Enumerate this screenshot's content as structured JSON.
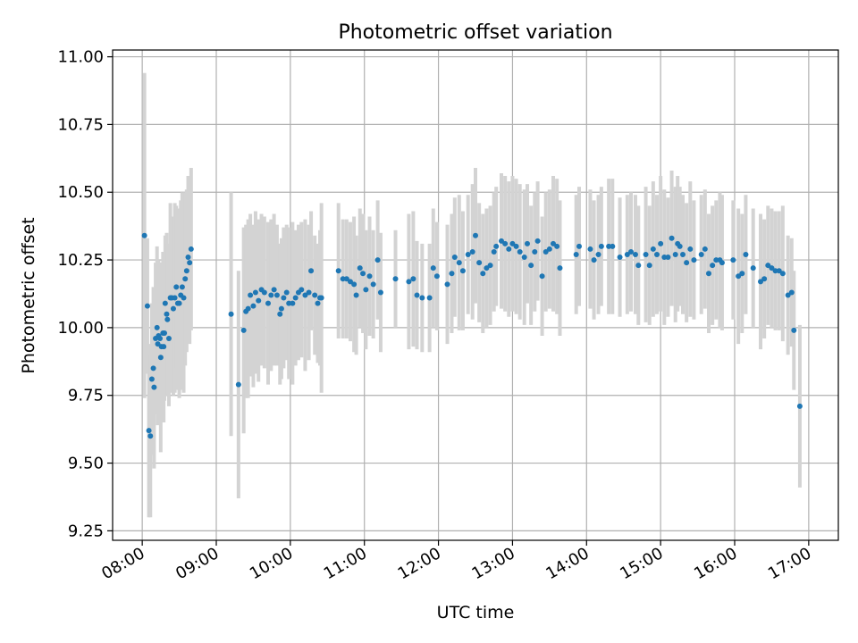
{
  "chart_data": {
    "type": "scatter",
    "title": "Photometric offset variation",
    "xlabel": "UTC time",
    "ylabel": "Photometric offset",
    "x_unit": "hours UTC",
    "xlim": [
      7.6,
      17.4
    ],
    "ylim": [
      9.215,
      11.025
    ],
    "x_ticks": [
      {
        "value": 8,
        "label": "08:00"
      },
      {
        "value": 9,
        "label": "09:00"
      },
      {
        "value": 10,
        "label": "10:00"
      },
      {
        "value": 11,
        "label": "11:00"
      },
      {
        "value": 12,
        "label": "12:00"
      },
      {
        "value": 13,
        "label": "13:00"
      },
      {
        "value": 14,
        "label": "14:00"
      },
      {
        "value": 15,
        "label": "15:00"
      },
      {
        "value": 16,
        "label": "16:00"
      },
      {
        "value": 17,
        "label": "17:00"
      }
    ],
    "y_ticks": [
      {
        "value": 9.25,
        "label": "9.25"
      },
      {
        "value": 9.5,
        "label": "9.50"
      },
      {
        "value": 9.75,
        "label": "9.75"
      },
      {
        "value": 10.0,
        "label": "10.00"
      },
      {
        "value": 10.25,
        "label": "10.25"
      },
      {
        "value": 10.5,
        "label": "10.50"
      },
      {
        "value": 10.75,
        "label": "10.75"
      },
      {
        "value": 11.0,
        "label": "11.00"
      }
    ],
    "grid": true,
    "point_color": "#1f77b4",
    "errorbar_color": "#d3d3d3",
    "points": [
      [
        8.03,
        10.34,
        0.6
      ],
      [
        8.07,
        10.08,
        0.25
      ],
      [
        8.09,
        9.62,
        0.32
      ],
      [
        8.11,
        9.6,
        0.3
      ],
      [
        8.13,
        9.81,
        0.28
      ],
      [
        8.15,
        9.85,
        0.3
      ],
      [
        8.16,
        9.78,
        0.3
      ],
      [
        8.18,
        9.96,
        0.28
      ],
      [
        8.2,
        10.0,
        0.3
      ],
      [
        8.21,
        9.94,
        0.3
      ],
      [
        8.22,
        9.97,
        0.28
      ],
      [
        8.24,
        9.96,
        0.28
      ],
      [
        8.25,
        9.89,
        0.35
      ],
      [
        8.26,
        9.93,
        0.28
      ],
      [
        8.28,
        9.98,
        0.3
      ],
      [
        8.29,
        9.93,
        0.28
      ],
      [
        8.3,
        9.98,
        0.25
      ],
      [
        8.31,
        10.09,
        0.25
      ],
      [
        8.33,
        10.05,
        0.3
      ],
      [
        8.34,
        10.03,
        0.28
      ],
      [
        8.36,
        9.96,
        0.25
      ],
      [
        8.38,
        10.11,
        0.35
      ],
      [
        8.4,
        10.11,
        0.3
      ],
      [
        8.42,
        10.07,
        0.32
      ],
      [
        8.44,
        10.11,
        0.35
      ],
      [
        8.46,
        10.15,
        0.3
      ],
      [
        8.48,
        10.09,
        0.32
      ],
      [
        8.5,
        10.09,
        0.35
      ],
      [
        8.52,
        10.12,
        0.35
      ],
      [
        8.54,
        10.15,
        0.35
      ],
      [
        8.56,
        10.11,
        0.35
      ],
      [
        8.58,
        10.18,
        0.32
      ],
      [
        8.6,
        10.21,
        0.3
      ],
      [
        8.62,
        10.26,
        0.3
      ],
      [
        8.64,
        10.24,
        0.3
      ],
      [
        8.66,
        10.29,
        0.3
      ],
      [
        9.2,
        10.05,
        0.45
      ],
      [
        9.3,
        9.79,
        0.42
      ],
      [
        9.37,
        9.99,
        0.38
      ],
      [
        9.4,
        10.06,
        0.32
      ],
      [
        9.43,
        10.07,
        0.33
      ],
      [
        9.46,
        10.12,
        0.3
      ],
      [
        9.5,
        10.08,
        0.3
      ],
      [
        9.53,
        10.13,
        0.3
      ],
      [
        9.57,
        10.1,
        0.3
      ],
      [
        9.61,
        10.14,
        0.28
      ],
      [
        9.65,
        10.13,
        0.28
      ],
      [
        9.7,
        10.09,
        0.3
      ],
      [
        9.74,
        10.12,
        0.28
      ],
      [
        9.78,
        10.14,
        0.28
      ],
      [
        9.82,
        10.12,
        0.26
      ],
      [
        9.86,
        10.05,
        0.26
      ],
      [
        9.88,
        10.07,
        0.26
      ],
      [
        9.91,
        10.11,
        0.26
      ],
      [
        9.95,
        10.13,
        0.25
      ],
      [
        9.98,
        10.09,
        0.28
      ],
      [
        10.03,
        10.09,
        0.3
      ],
      [
        10.07,
        10.11,
        0.25
      ],
      [
        10.11,
        10.13,
        0.25
      ],
      [
        10.15,
        10.14,
        0.25
      ],
      [
        10.2,
        10.12,
        0.28
      ],
      [
        10.25,
        10.13,
        0.25
      ],
      [
        10.28,
        10.21,
        0.22
      ],
      [
        10.33,
        10.12,
        0.22
      ],
      [
        10.37,
        10.09,
        0.22
      ],
      [
        10.4,
        10.11,
        0.25
      ],
      [
        10.42,
        10.11,
        0.35
      ],
      [
        10.65,
        10.21,
        0.25
      ],
      [
        10.71,
        10.18,
        0.22
      ],
      [
        10.76,
        10.18,
        0.22
      ],
      [
        10.81,
        10.17,
        0.22
      ],
      [
        10.86,
        10.16,
        0.25
      ],
      [
        10.89,
        10.12,
        0.22
      ],
      [
        10.94,
        10.22,
        0.22
      ],
      [
        10.98,
        10.2,
        0.22
      ],
      [
        11.02,
        10.14,
        0.22
      ],
      [
        11.07,
        10.19,
        0.22
      ],
      [
        11.12,
        10.16,
        0.2
      ],
      [
        11.18,
        10.25,
        0.22
      ],
      [
        11.22,
        10.13,
        0.22
      ],
      [
        11.42,
        10.18,
        0.18
      ],
      [
        11.6,
        10.17,
        0.25
      ],
      [
        11.66,
        10.18,
        0.25
      ],
      [
        11.71,
        10.12,
        0.2
      ],
      [
        11.78,
        10.11,
        0.2
      ],
      [
        11.88,
        10.11,
        0.2
      ],
      [
        11.93,
        10.22,
        0.22
      ],
      [
        11.98,
        10.19,
        0.2
      ],
      [
        12.12,
        10.16,
        0.22
      ],
      [
        12.18,
        10.2,
        0.22
      ],
      [
        12.22,
        10.26,
        0.22
      ],
      [
        12.28,
        10.24,
        0.25
      ],
      [
        12.33,
        10.21,
        0.22
      ],
      [
        12.4,
        10.27,
        0.22
      ],
      [
        12.46,
        10.28,
        0.25
      ],
      [
        12.5,
        10.34,
        0.25
      ],
      [
        12.55,
        10.24,
        0.22
      ],
      [
        12.6,
        10.2,
        0.22
      ],
      [
        12.65,
        10.22,
        0.22
      ],
      [
        12.7,
        10.23,
        0.22
      ],
      [
        12.75,
        10.28,
        0.22
      ],
      [
        12.78,
        10.3,
        0.22
      ],
      [
        12.85,
        10.32,
        0.25
      ],
      [
        12.9,
        10.31,
        0.25
      ],
      [
        12.95,
        10.29,
        0.25
      ],
      [
        13.0,
        10.31,
        0.25
      ],
      [
        13.05,
        10.3,
        0.25
      ],
      [
        13.1,
        10.28,
        0.25
      ],
      [
        13.16,
        10.26,
        0.25
      ],
      [
        13.2,
        10.31,
        0.22
      ],
      [
        13.25,
        10.23,
        0.22
      ],
      [
        13.3,
        10.28,
        0.22
      ],
      [
        13.34,
        10.32,
        0.22
      ],
      [
        13.4,
        10.19,
        0.22
      ],
      [
        13.45,
        10.28,
        0.22
      ],
      [
        13.5,
        10.29,
        0.22
      ],
      [
        13.55,
        10.31,
        0.25
      ],
      [
        13.6,
        10.3,
        0.25
      ],
      [
        13.64,
        10.22,
        0.25
      ],
      [
        13.86,
        10.27,
        0.22
      ],
      [
        13.9,
        10.3,
        0.22
      ],
      [
        14.05,
        10.29,
        0.22
      ],
      [
        14.1,
        10.25,
        0.22
      ],
      [
        14.16,
        10.27,
        0.22
      ],
      [
        14.2,
        10.3,
        0.22
      ],
      [
        14.3,
        10.3,
        0.25
      ],
      [
        14.35,
        10.3,
        0.25
      ],
      [
        14.45,
        10.26,
        0.22
      ],
      [
        14.55,
        10.27,
        0.22
      ],
      [
        14.6,
        10.28,
        0.22
      ],
      [
        14.66,
        10.27,
        0.22
      ],
      [
        14.7,
        10.23,
        0.22
      ],
      [
        14.8,
        10.27,
        0.25
      ],
      [
        14.85,
        10.23,
        0.22
      ],
      [
        14.9,
        10.29,
        0.25
      ],
      [
        14.95,
        10.27,
        0.22
      ],
      [
        15.0,
        10.31,
        0.25
      ],
      [
        15.05,
        10.26,
        0.25
      ],
      [
        15.1,
        10.26,
        0.22
      ],
      [
        15.15,
        10.33,
        0.25
      ],
      [
        15.2,
        10.27,
        0.25
      ],
      [
        15.23,
        10.31,
        0.25
      ],
      [
        15.26,
        10.3,
        0.22
      ],
      [
        15.3,
        10.27,
        0.22
      ],
      [
        15.35,
        10.24,
        0.22
      ],
      [
        15.4,
        10.29,
        0.25
      ],
      [
        15.45,
        10.25,
        0.22
      ],
      [
        15.55,
        10.27,
        0.22
      ],
      [
        15.6,
        10.29,
        0.22
      ],
      [
        15.65,
        10.2,
        0.22
      ],
      [
        15.7,
        10.23,
        0.22
      ],
      [
        15.75,
        10.25,
        0.22
      ],
      [
        15.8,
        10.25,
        0.25
      ],
      [
        15.83,
        10.24,
        0.25
      ],
      [
        15.98,
        10.25,
        0.22
      ],
      [
        16.05,
        10.19,
        0.25
      ],
      [
        16.1,
        10.2,
        0.22
      ],
      [
        16.15,
        10.27,
        0.22
      ],
      [
        16.25,
        10.22,
        0.22
      ],
      [
        16.35,
        10.17,
        0.25
      ],
      [
        16.4,
        10.18,
        0.22
      ],
      [
        16.45,
        10.23,
        0.22
      ],
      [
        16.5,
        10.22,
        0.22
      ],
      [
        16.55,
        10.21,
        0.22
      ],
      [
        16.6,
        10.21,
        0.22
      ],
      [
        16.65,
        10.2,
        0.25
      ],
      [
        16.72,
        10.12,
        0.22
      ],
      [
        16.77,
        10.13,
        0.2
      ],
      [
        16.8,
        9.99,
        0.22
      ],
      [
        16.88,
        9.71,
        0.3
      ]
    ]
  }
}
